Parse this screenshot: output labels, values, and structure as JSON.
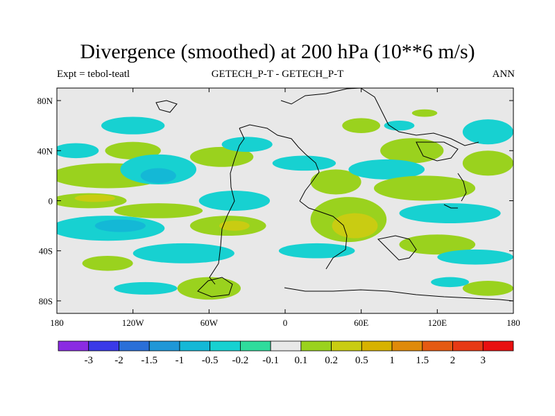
{
  "title": "Divergence (smoothed) at 200 hPa (10**6 m/s)",
  "subtitle_left": "Expt = tebol-teatl",
  "subtitle_center": "GETECH_P-T - GETECH_P-T",
  "subtitle_right": "ANN",
  "axes": {
    "x_ticks": [
      "180",
      "120W",
      "60W",
      "0",
      "60E",
      "120E",
      "180"
    ],
    "x_values": [
      -180,
      -120,
      -60,
      0,
      60,
      120,
      180
    ],
    "y_ticks": [
      "80N",
      "40N",
      "0",
      "40S",
      "80S"
    ],
    "y_values": [
      80,
      40,
      0,
      -40,
      -80
    ],
    "xlim": [
      -180,
      180
    ],
    "ylim": [
      -90,
      90
    ]
  },
  "colorbar": {
    "labels": [
      "-3",
      "-2",
      "-1.5",
      "-1",
      "-0.5",
      "-0.2",
      "-0.1",
      "0.1",
      "0.2",
      "0.5",
      "1",
      "1.5",
      "2",
      "3"
    ],
    "colors": [
      "#8a2be2",
      "#3a3ae8",
      "#2a6fd8",
      "#1f97d7",
      "#14b8d6",
      "#17d1d1",
      "#2fdc9c",
      "#e8e8e8",
      "#9ad21e",
      "#c9cc12",
      "#d7b200",
      "#df8a0a",
      "#e55a12",
      "#e63a15",
      "#e81010"
    ]
  },
  "map": {
    "background_color": "#e8e8e8",
    "fields": [
      {
        "cls": "c-pos1",
        "lon": -140,
        "lat": 20,
        "rlon": 45,
        "rlat": 10
      },
      {
        "cls": "c-neg1",
        "lon": -165,
        "lat": 40,
        "rlon": 18,
        "rlat": 6
      },
      {
        "cls": "c-pos1",
        "lon": -120,
        "lat": 40,
        "rlon": 22,
        "rlat": 7
      },
      {
        "cls": "c-neg1",
        "lon": -100,
        "lat": 25,
        "rlon": 30,
        "rlat": 12
      },
      {
        "cls": "c-neg2",
        "lon": -100,
        "lat": 20,
        "rlon": 14,
        "rlat": 6
      },
      {
        "cls": "c-pos1",
        "lon": -50,
        "lat": 35,
        "rlon": 25,
        "rlat": 8
      },
      {
        "cls": "c-neg1",
        "lon": -30,
        "lat": 45,
        "rlon": 20,
        "rlat": 6
      },
      {
        "cls": "c-pos1",
        "lon": -155,
        "lat": 0,
        "rlon": 30,
        "rlat": 6
      },
      {
        "cls": "c-pos2",
        "lon": -150,
        "lat": 2,
        "rlon": 16,
        "rlat": 3
      },
      {
        "cls": "c-neg1",
        "lon": -140,
        "lat": -22,
        "rlon": 45,
        "rlat": 10
      },
      {
        "cls": "c-neg2",
        "lon": -130,
        "lat": -20,
        "rlon": 20,
        "rlat": 5
      },
      {
        "cls": "c-pos1",
        "lon": -100,
        "lat": -8,
        "rlon": 35,
        "rlat": 6
      },
      {
        "cls": "c-neg1",
        "lon": -40,
        "lat": 0,
        "rlon": 28,
        "rlat": 8
      },
      {
        "cls": "c-pos1",
        "lon": -45,
        "lat": -20,
        "rlon": 30,
        "rlat": 8
      },
      {
        "cls": "c-pos2",
        "lon": -40,
        "lat": -20,
        "rlon": 12,
        "rlat": 4
      },
      {
        "cls": "c-neg1",
        "lon": -80,
        "lat": -42,
        "rlon": 40,
        "rlat": 8
      },
      {
        "cls": "c-pos1",
        "lon": -140,
        "lat": -50,
        "rlon": 20,
        "rlat": 6
      },
      {
        "cls": "c-pos1",
        "lon": -60,
        "lat": -70,
        "rlon": 25,
        "rlat": 9
      },
      {
        "cls": "c-neg1",
        "lon": -110,
        "lat": -70,
        "rlon": 25,
        "rlat": 5
      },
      {
        "cls": "c-pos1",
        "lon": 40,
        "lat": 15,
        "rlon": 20,
        "rlat": 10
      },
      {
        "cls": "c-neg1",
        "lon": 15,
        "lat": 30,
        "rlon": 25,
        "rlat": 6
      },
      {
        "cls": "c-pos1",
        "lon": 50,
        "lat": -15,
        "rlon": 30,
        "rlat": 18
      },
      {
        "cls": "c-pos2",
        "lon": 55,
        "lat": -20,
        "rlon": 18,
        "rlat": 10
      },
      {
        "cls": "c-neg1",
        "lon": 25,
        "lat": -40,
        "rlon": 30,
        "rlat": 6
      },
      {
        "cls": "c-pos1",
        "lon": 100,
        "lat": 40,
        "rlon": 25,
        "rlat": 10
      },
      {
        "cls": "c-neg1",
        "lon": 80,
        "lat": 25,
        "rlon": 30,
        "rlat": 8
      },
      {
        "cls": "c-pos1",
        "lon": 110,
        "lat": 10,
        "rlon": 40,
        "rlat": 10
      },
      {
        "cls": "c-neg1",
        "lon": 130,
        "lat": -10,
        "rlon": 40,
        "rlat": 8
      },
      {
        "cls": "c-pos1",
        "lon": 120,
        "lat": -35,
        "rlon": 30,
        "rlat": 8
      },
      {
        "cls": "c-neg1",
        "lon": 150,
        "lat": -45,
        "rlon": 30,
        "rlat": 6
      },
      {
        "cls": "c-pos1",
        "lon": 160,
        "lat": 30,
        "rlon": 20,
        "rlat": 10
      },
      {
        "cls": "c-neg1",
        "lon": 160,
        "lat": 55,
        "rlon": 20,
        "rlat": 10
      },
      {
        "cls": "c-pos1",
        "lon": 160,
        "lat": -70,
        "rlon": 20,
        "rlat": 6
      },
      {
        "cls": "c-neg1",
        "lon": 130,
        "lat": -65,
        "rlon": 15,
        "rlat": 4
      },
      {
        "cls": "c-pos1",
        "lon": 60,
        "lat": 60,
        "rlon": 15,
        "rlat": 6
      },
      {
        "cls": "c-neg1",
        "lon": 90,
        "lat": 60,
        "rlon": 12,
        "rlat": 4
      },
      {
        "cls": "c-pos1",
        "lon": 110,
        "lat": 70,
        "rlon": 10,
        "rlat": 3
      },
      {
        "cls": "c-neg1",
        "lon": -120,
        "lat": 60,
        "rlon": 25,
        "rlat": 7
      }
    ]
  }
}
